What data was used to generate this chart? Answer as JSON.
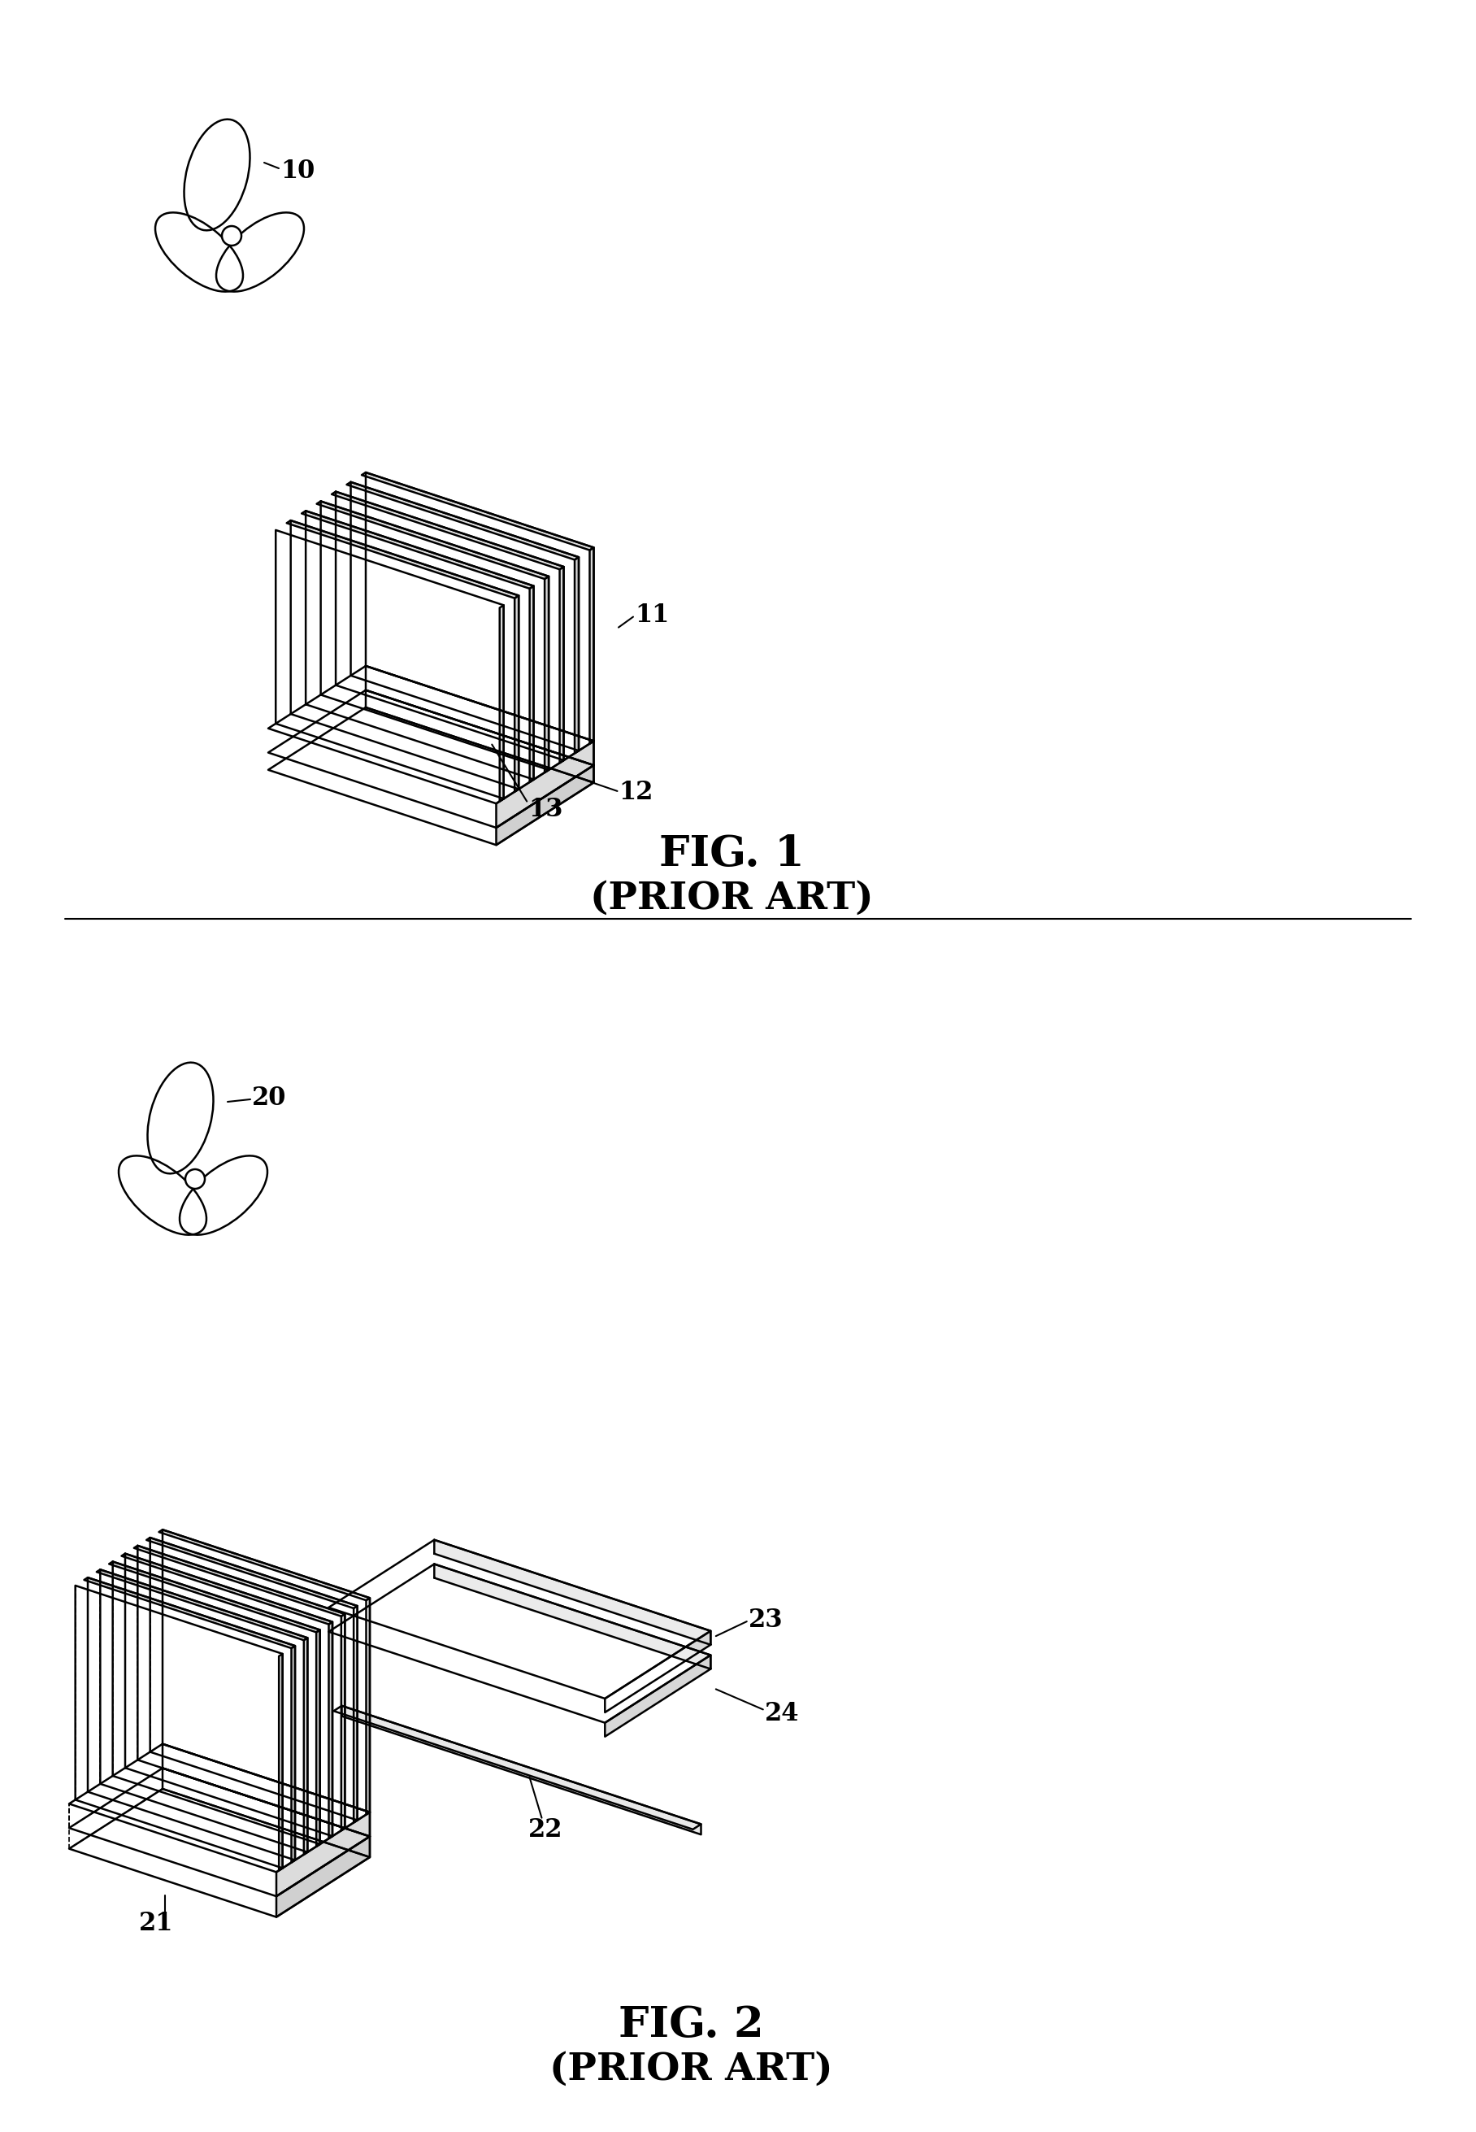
{
  "fig1_label": "FIG. 1",
  "fig1_sub": "(PRIOR ART)",
  "fig2_label": "FIG. 2",
  "fig2_sub": "(PRIOR ART)",
  "background_color": "#ffffff",
  "line_color": "#000000",
  "fig1_numbers": {
    "fan": "10",
    "fins": "11",
    "base_top": "12",
    "base_bottom": "13"
  },
  "fig2_numbers": {
    "fan": "20",
    "heatsink": "21",
    "pipe": "22",
    "plate_top": "23",
    "plate_bottom": "24"
  }
}
